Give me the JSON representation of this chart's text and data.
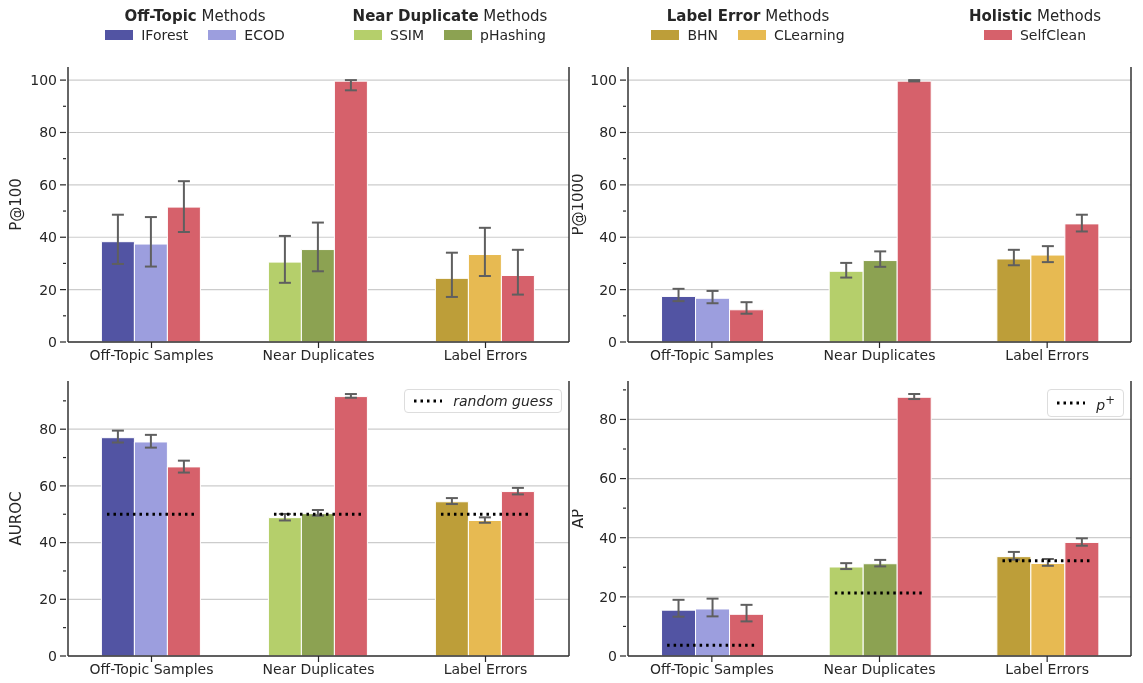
{
  "chart_data": [
    {
      "type": "bar",
      "ylabel": "P@100",
      "categories": [
        "Off-Topic Samples",
        "Near Duplicates",
        "Label Errors"
      ],
      "ylim": [
        0,
        105
      ],
      "yticks": [
        0,
        {
          "value": 10,
          "label": null
        },
        20,
        {
          "value": 30,
          "label": null
        },
        40,
        {
          "value": 50,
          "label": null
        },
        60,
        {
          "value": 70,
          "label": null
        },
        80,
        {
          "value": 90,
          "label": null
        },
        100
      ],
      "grid": "y",
      "legend": "top",
      "annotations": [
        "Off-Topic Methods",
        "Near Duplicate Methods",
        "Label Error Methods",
        "Holistic Methods"
      ],
      "series": [
        {
          "name": "IForest",
          "color": "#5254a3",
          "values": [
            38.3,
            null,
            null
          ],
          "errors": [
            [
              29.8,
              48.6
            ],
            null,
            null
          ]
        },
        {
          "name": "ECOD",
          "color": "#9c9ede",
          "values": [
            37.4,
            null,
            null
          ],
          "errors": [
            [
              28.8,
              47.7
            ],
            null,
            null
          ]
        },
        {
          "name": "SSIM",
          "color": "#b5cf6b",
          "values": [
            null,
            30.5,
            null
          ],
          "errors": [
            null,
            [
              22.6,
              40.5
            ],
            null
          ]
        },
        {
          "name": "pHashing",
          "color": "#8ca252",
          "values": [
            null,
            35.3,
            null
          ],
          "errors": [
            null,
            [
              27.0,
              45.6
            ],
            null
          ]
        },
        {
          "name": "BHN",
          "color": "#bd9e39",
          "values": [
            null,
            null,
            24.3
          ],
          "errors": [
            null,
            null,
            [
              17.2,
              34.1
            ]
          ]
        },
        {
          "name": "CLearning",
          "color": "#e7ba52",
          "values": [
            null,
            null,
            33.4
          ],
          "errors": [
            null,
            null,
            [
              25.2,
              43.6
            ]
          ]
        },
        {
          "name": "SelfClean",
          "color": "#d6616b",
          "values": [
            51.5,
            99.6,
            25.4
          ],
          "errors": [
            [
              42.0,
              61.4
            ],
            [
              96.1,
              100
            ],
            [
              18.1,
              35.2
            ]
          ]
        }
      ]
    },
    {
      "type": "bar",
      "ylabel": "P@1000",
      "categories": [
        "Off-Topic Samples",
        "Near Duplicates",
        "Label Errors"
      ],
      "ylim": [
        0,
        105
      ],
      "yticks": [
        0,
        {
          "value": 10,
          "label": null
        },
        20,
        {
          "value": 30,
          "label": null
        },
        40,
        {
          "value": 50,
          "label": null
        },
        60,
        {
          "value": 70,
          "label": null
        },
        80,
        {
          "value": 90,
          "label": null
        },
        100
      ],
      "grid": "y",
      "series": [
        {
          "color": "#5254a3",
          "values": [
            17.4,
            null,
            null
          ],
          "errors": [
            [
              15.6,
              20.3
            ],
            null,
            null
          ]
        },
        {
          "color": "#9c9ede",
          "values": [
            16.7,
            null,
            null
          ],
          "errors": [
            [
              14.8,
              19.5
            ],
            null,
            null
          ]
        },
        {
          "color": "#b5cf6b",
          "values": [
            null,
            27.0,
            null
          ],
          "errors": [
            null,
            [
              24.6,
              30.2
            ],
            null
          ]
        },
        {
          "color": "#8ca252",
          "values": [
            null,
            31.1,
            null
          ],
          "errors": [
            null,
            [
              28.7,
              34.6
            ],
            null
          ]
        },
        {
          "color": "#bd9e39",
          "values": [
            null,
            null,
            31.7
          ],
          "errors": [
            null,
            null,
            [
              29.3,
              35.2
            ]
          ]
        },
        {
          "color": "#e7ba52",
          "values": [
            null,
            null,
            33.2
          ],
          "errors": [
            null,
            null,
            [
              30.5,
              36.6
            ]
          ]
        },
        {
          "color": "#d6616b",
          "values": [
            12.3,
            99.6,
            45.1
          ],
          "errors": [
            [
              10.8,
              15.2
            ],
            [
              99.5,
              100
            ],
            [
              42.2,
              48.6
            ]
          ]
        }
      ]
    },
    {
      "type": "bar",
      "ylabel": "AUROC",
      "categories": [
        "Off-Topic Samples",
        "Near Duplicates",
        "Label Errors"
      ],
      "ylim": [
        0,
        97
      ],
      "yticks": [
        0,
        {
          "value": 10,
          "label": null
        },
        20,
        {
          "value": 30,
          "label": null
        },
        40,
        {
          "value": 50,
          "label": null
        },
        60,
        {
          "value": 70,
          "label": null
        },
        80,
        {
          "value": 90,
          "label": null
        }
      ],
      "grid": "y",
      "legend": "top right",
      "series": [
        {
          "color": "#5254a3",
          "values": [
            77.0,
            null,
            null
          ],
          "errors": [
            [
              75.3,
              79.5
            ],
            null,
            null
          ]
        },
        {
          "color": "#9c9ede",
          "values": [
            75.5,
            null,
            null
          ],
          "errors": [
            [
              73.5,
              78.0
            ],
            null,
            null
          ]
        },
        {
          "color": "#b5cf6b",
          "values": [
            null,
            48.8,
            null
          ],
          "errors": [
            null,
            [
              47.8,
              50.1
            ],
            null
          ]
        },
        {
          "color": "#8ca252",
          "values": [
            null,
            50.2,
            null
          ],
          "errors": [
            null,
            [
              49.5,
              51.5
            ],
            null
          ]
        },
        {
          "color": "#bd9e39",
          "values": [
            null,
            null,
            54.4
          ],
          "errors": [
            null,
            null,
            [
              53.6,
              55.7
            ]
          ]
        },
        {
          "color": "#e7ba52",
          "values": [
            null,
            null,
            47.8
          ],
          "errors": [
            null,
            null,
            [
              47.0,
              48.9
            ]
          ]
        },
        {
          "color": "#d6616b",
          "values": [
            66.7,
            91.5,
            58.0
          ],
          "errors": [
            [
              64.7,
              68.9
            ],
            [
              91.1,
              92.4
            ],
            [
              57.0,
              59.3
            ]
          ]
        }
      ],
      "ref_lines": [
        {
          "axis": "y",
          "value": 50,
          "label": "random guess",
          "color": "#000000",
          "line_style": "dotted"
        }
      ]
    },
    {
      "type": "bar",
      "ylabel": "AP",
      "categories": [
        "Off-Topic Samples",
        "Near Duplicates",
        "Label Errors"
      ],
      "ylim": [
        0,
        93
      ],
      "yticks": [
        0,
        {
          "value": 10,
          "label": null
        },
        20,
        {
          "value": 30,
          "label": null
        },
        40,
        {
          "value": 50,
          "label": null
        },
        60,
        {
          "value": 70,
          "label": null
        },
        80,
        {
          "value": 90,
          "label": null
        }
      ],
      "grid": "y",
      "legend": "top right",
      "series": [
        {
          "color": "#5254a3",
          "values": [
            15.5,
            null,
            null
          ],
          "errors": [
            [
              13.3,
              19.0
            ],
            null,
            null
          ]
        },
        {
          "color": "#9c9ede",
          "values": [
            15.9,
            null,
            null
          ],
          "errors": [
            [
              13.4,
              19.4
            ],
            null,
            null
          ]
        },
        {
          "color": "#b5cf6b",
          "values": [
            null,
            30.1,
            null
          ],
          "errors": [
            null,
            [
              29.4,
              31.4
            ],
            null
          ]
        },
        {
          "color": "#8ca252",
          "values": [
            null,
            31.2,
            null
          ],
          "errors": [
            null,
            [
              30.3,
              32.5
            ],
            null
          ]
        },
        {
          "color": "#bd9e39",
          "values": [
            null,
            null,
            33.6
          ],
          "errors": [
            null,
            null,
            [
              32.6,
              35.2
            ]
          ]
        },
        {
          "color": "#e7ba52",
          "values": [
            null,
            null,
            31.3
          ],
          "errors": [
            null,
            null,
            [
              30.5,
              32.8
            ]
          ]
        },
        {
          "color": "#d6616b",
          "values": [
            14.1,
            87.5,
            38.4
          ],
          "errors": [
            [
              11.7,
              17.3
            ],
            [
              86.9,
              88.6
            ],
            [
              37.3,
              39.8
            ]
          ]
        }
      ],
      "ref_lines": [
        {
          "axis": "y",
          "value": 3.6,
          "label": "p$^{+}$",
          "color": "#000000",
          "line_style": "dotted"
        },
        {
          "axis": "y",
          "value": 21.3,
          "color": "#000000",
          "line_style": "dotted"
        },
        {
          "axis": "y",
          "value": 32.2,
          "color": "#000000",
          "line_style": "dotted"
        }
      ]
    }
  ]
}
